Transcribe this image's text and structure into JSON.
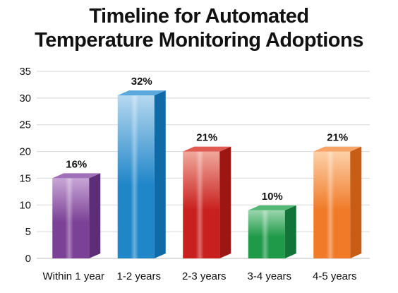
{
  "chart_data": {
    "type": "bar",
    "title_lines": [
      "Timeline for Automated",
      "Temperature Monitoring Adoptions"
    ],
    "xlabel": "",
    "ylabel": "",
    "categories": [
      "Within 1 year",
      "1-2 years",
      "2-3 years",
      "3-4 years",
      "4-5 years"
    ],
    "values": [
      15,
      30.5,
      20,
      9,
      20
    ],
    "data_labels": [
      "16%",
      "32%",
      "21%",
      "10%",
      "21%"
    ],
    "ylim": [
      0,
      35
    ],
    "yticks": [
      "0",
      "5",
      "10",
      "15",
      "20",
      "25",
      "30",
      "35"
    ],
    "grid": true,
    "style": "3d",
    "colors": [
      {
        "front": "#7b4196",
        "light": "#c8a6d6",
        "side": "#5e2d78",
        "top": "#a070b8"
      },
      {
        "front": "#1f86c8",
        "light": "#b6d8f0",
        "side": "#0f6aa8",
        "top": "#5aa8dc"
      },
      {
        "front": "#c8201e",
        "light": "#f0a89c",
        "side": "#9e1614",
        "top": "#e05a52"
      },
      {
        "front": "#1f9a48",
        "light": "#9ad6ad",
        "side": "#13743a",
        "top": "#56b876"
      },
      {
        "front": "#f07a28",
        "light": "#fdd0a8",
        "side": "#c85e16",
        "top": "#f7a566"
      }
    ]
  }
}
